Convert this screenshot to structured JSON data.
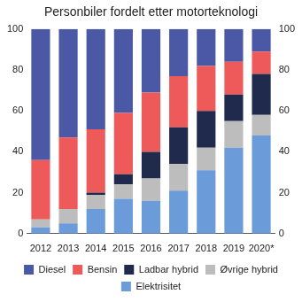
{
  "chart_data": {
    "type": "bar",
    "title": "Personbiler fordelt etter motorteknologi",
    "categories": [
      "2012",
      "2013",
      "2014",
      "2015",
      "2016",
      "2017",
      "2018",
      "2019",
      "2020*"
    ],
    "series": [
      {
        "name": "Elektrisitet",
        "color": "#6b9bd8",
        "values": [
          3,
          5,
          12,
          17,
          16,
          21,
          31,
          42,
          48
        ]
      },
      {
        "name": "Øvrige hybrid",
        "color": "#bdbdbd",
        "values": [
          4,
          7,
          7,
          7,
          11,
          13,
          11,
          13,
          10
        ]
      },
      {
        "name": "Ladbar hybrid",
        "color": "#1f2a4d",
        "values": [
          0,
          0,
          1,
          5,
          13,
          18,
          18,
          13,
          20
        ]
      },
      {
        "name": "Bensin",
        "color": "#ee5a5a",
        "values": [
          29,
          35,
          31,
          30,
          29,
          25,
          22,
          16,
          11
        ]
      },
      {
        "name": "Diesel",
        "color": "#4a58a6",
        "values": [
          64,
          53,
          49,
          41,
          31,
          23,
          18,
          16,
          11
        ]
      }
    ],
    "stacked": true,
    "ylim": [
      0,
      100
    ],
    "yticks": [
      0,
      20,
      40,
      60,
      80,
      100
    ],
    "y2lim": [
      0,
      100
    ],
    "y2ticks": [
      0,
      20,
      40,
      60,
      80,
      100
    ],
    "grid": false,
    "legend": "bottom"
  }
}
